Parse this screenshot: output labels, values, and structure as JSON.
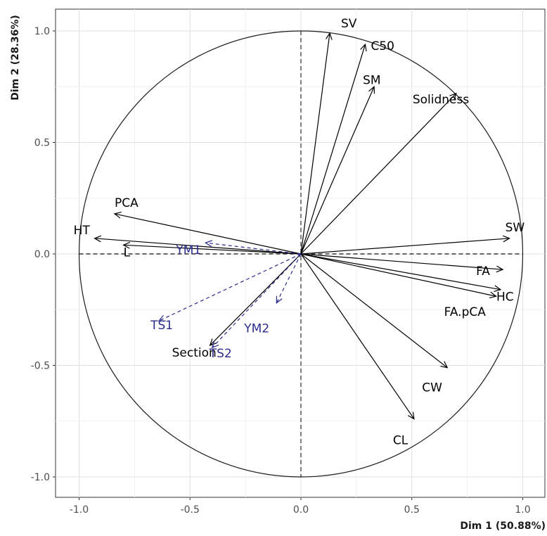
{
  "chart_data": {
    "type": "scatter",
    "subtype": "pca-correlation-circle",
    "title": "",
    "xlabel": "Dim 1 (50.88%)",
    "ylabel": "Dim 2 (28.36%)",
    "xlim": [
      -1.05,
      1.05
    ],
    "ylim": [
      -1.05,
      1.05
    ],
    "xticks": [
      -1.0,
      -0.5,
      0.0,
      0.5,
      1.0
    ],
    "yticks": [
      -1.0,
      -0.5,
      0.0,
      0.5,
      1.0
    ],
    "xtick_labels": [
      "-1.0",
      "-0.5",
      "0.0",
      "0.5",
      "1.0"
    ],
    "ytick_labels": [
      "-1.0",
      "-0.5",
      "0.0",
      "0.5",
      "1.0"
    ],
    "grid": true,
    "unit_circle": true,
    "active_color": "#000000",
    "supplementary_color": "#2b2b8c",
    "variables": [
      {
        "name": "SV",
        "x": 0.13,
        "y": 0.99,
        "supplementary": false
      },
      {
        "name": "C50",
        "x": 0.29,
        "y": 0.94,
        "supplementary": false
      },
      {
        "name": "SM",
        "x": 0.33,
        "y": 0.75,
        "supplementary": false
      },
      {
        "name": "Solidness",
        "x": 0.7,
        "y": 0.72,
        "supplementary": false
      },
      {
        "name": "PCA",
        "x": -0.84,
        "y": 0.18,
        "supplementary": false
      },
      {
        "name": "HT",
        "x": -0.93,
        "y": 0.07,
        "supplementary": false
      },
      {
        "name": "L",
        "x": -0.8,
        "y": 0.04,
        "supplementary": false
      },
      {
        "name": "SW",
        "x": 0.94,
        "y": 0.07,
        "supplementary": false
      },
      {
        "name": "FA",
        "x": 0.91,
        "y": -0.07,
        "supplementary": false
      },
      {
        "name": "HC",
        "x": 0.9,
        "y": -0.16,
        "supplementary": false
      },
      {
        "name": "FA.pCA",
        "x": 0.88,
        "y": -0.19,
        "supplementary": false
      },
      {
        "name": "CW",
        "x": 0.66,
        "y": -0.51,
        "supplementary": false
      },
      {
        "name": "CL",
        "x": 0.51,
        "y": -0.74,
        "supplementary": false
      },
      {
        "name": "Section",
        "x": -0.41,
        "y": -0.41,
        "supplementary": false
      },
      {
        "name": "YM1",
        "x": -0.43,
        "y": 0.05,
        "supplementary": true
      },
      {
        "name": "TS1",
        "x": -0.64,
        "y": -0.3,
        "supplementary": true
      },
      {
        "name": "TS2",
        "x": -0.4,
        "y": -0.42,
        "supplementary": true
      },
      {
        "name": "YM2",
        "x": -0.11,
        "y": -0.22,
        "supplementary": true
      }
    ]
  }
}
